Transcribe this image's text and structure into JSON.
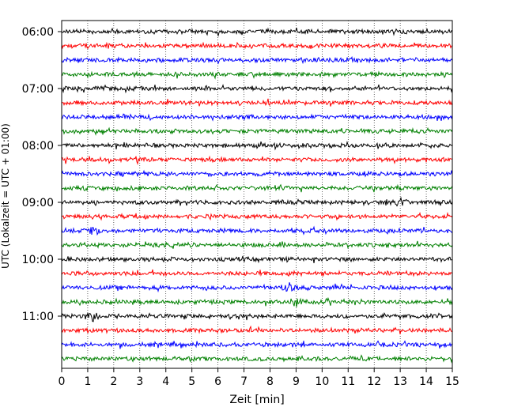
{
  "chart_data": {
    "type": "line",
    "title": "",
    "xlabel": "Zeit  [min]",
    "ylabel": "UTC (Lokalzeit = UTC + 01:00)",
    "xlim": [
      0,
      15
    ],
    "x_ticks": [
      "0",
      "1",
      "2",
      "3",
      "4",
      "5",
      "6",
      "7",
      "8",
      "9",
      "10",
      "11",
      "12",
      "13",
      "14",
      "15"
    ],
    "y_tick_labels": [
      "06:00",
      "07:00",
      "08:00",
      "09:00",
      "10:00",
      "11:00"
    ],
    "trace_start_times": [
      "06:00",
      "06:15",
      "06:30",
      "06:45",
      "07:00",
      "07:15",
      "07:30",
      "07:45",
      "08:00",
      "08:15",
      "08:30",
      "08:45",
      "09:00",
      "09:15",
      "09:30",
      "09:45",
      "10:00",
      "10:15",
      "10:30",
      "10:45",
      "11:00",
      "11:15",
      "11:30",
      "11:45"
    ],
    "trace_minutes_per_row": 15,
    "color_cycle": [
      "#000000",
      "#ff0000",
      "#0000ff",
      "#008000"
    ],
    "grid": "vertical dotted lines at each minute",
    "events": [
      {
        "row": 14,
        "minute": 1.2,
        "color": "#0000ff"
      },
      {
        "row": 18,
        "minute": 8.7,
        "color": "#0000ff"
      },
      {
        "row": 19,
        "minute": 9.0,
        "color": "#008000"
      },
      {
        "row": 20,
        "minute": 1.2,
        "color": "#000000"
      },
      {
        "row": 12,
        "minute": 13.0,
        "color": "#000000"
      }
    ]
  }
}
